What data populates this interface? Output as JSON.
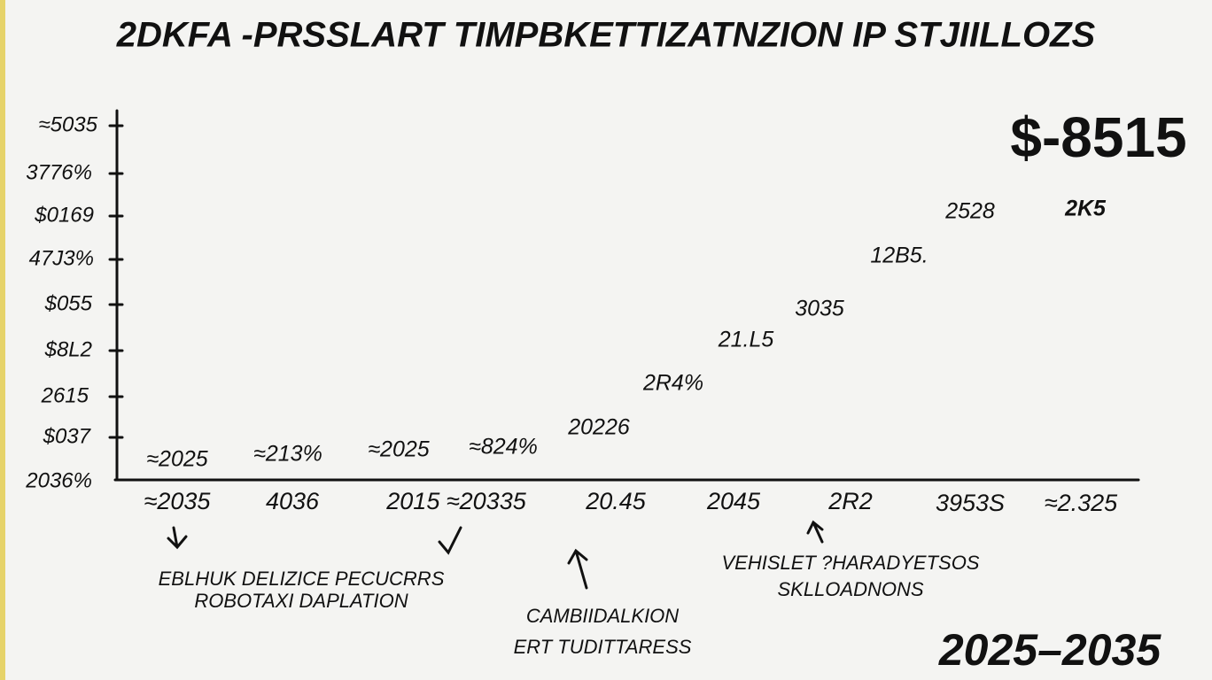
{
  "title": "2DKFA -PRSSLART TIMPBKETTIZATNZION IP STJIILLOZS",
  "headline_value": "$-8515",
  "y_labels": [
    "≈5035",
    "3776%",
    "$0169",
    "47J3%",
    "$055",
    "$8L2",
    "2615",
    "$037",
    "2036%"
  ],
  "x_labels": [
    "≈2035",
    "4036",
    "2015 ≈20335",
    "20.45",
    "2045",
    "2R2",
    "3953S",
    "≈2.325"
  ],
  "point_labels": [
    "≈2025",
    "≈213%",
    "≈2025",
    "≈824%",
    "20226",
    "2R4%",
    "21.L5",
    "3035",
    "12B5.",
    "2528",
    "2K5"
  ],
  "annotations": {
    "left": [
      "EBLHUK DELIZICE PECUCRRS",
      "ROBOTAXI DAPLATION"
    ],
    "middle": [
      "CAMBIIDALKION",
      "ERT TUDITTARESS"
    ],
    "right": [
      "VEHISLET ?HARADYETSOS",
      "SKLLOADNONS"
    ]
  },
  "period": "2025–2035"
}
